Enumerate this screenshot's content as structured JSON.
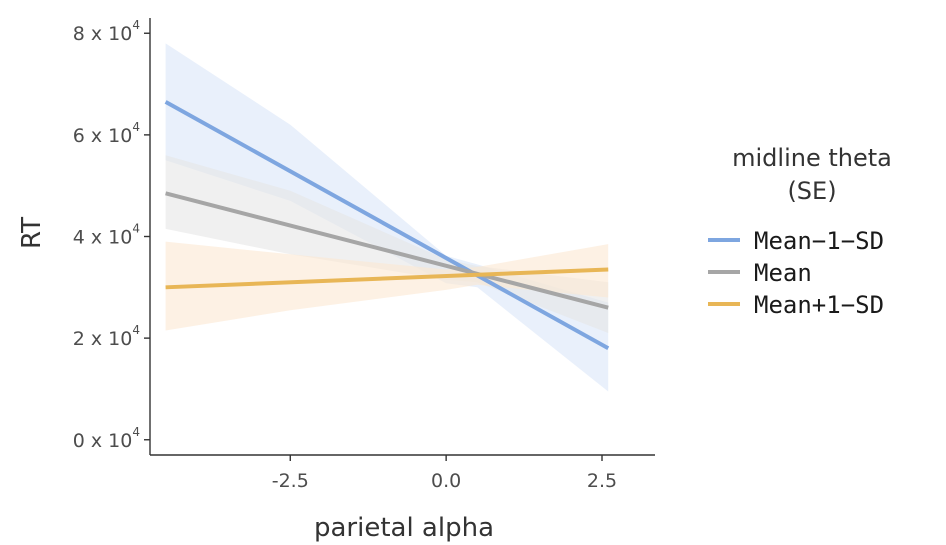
{
  "chart_data": {
    "type": "line",
    "title": "",
    "xlabel": "parietal alpha",
    "ylabel": "RT",
    "xlim": [
      -4.75,
      3.35
    ],
    "ylim": [
      -3000,
      83000
    ],
    "x_ticks": [
      -2.5,
      0.0,
      2.5
    ],
    "x_tick_labels": [
      "-2.5",
      "0.0",
      "2.5"
    ],
    "y_ticks": [
      0,
      20000,
      40000,
      60000,
      80000
    ],
    "y_tick_labels": [
      {
        "base": "0 x 10",
        "exp": "4"
      },
      {
        "base": "2 x 10",
        "exp": "4"
      },
      {
        "base": "4 x 10",
        "exp": "4"
      },
      {
        "base": "6 x 10",
        "exp": "4"
      },
      {
        "base": "8 x 10",
        "exp": "4"
      }
    ],
    "grid": false,
    "legend": {
      "title_line1": "midline theta",
      "title_line2": "(SE)",
      "placement": "right"
    },
    "series": [
      {
        "name": "Mean−1−SD",
        "color": "#7ea6e0",
        "ribbon_color": "#dbe6f8",
        "x": [
          -4.5,
          2.6
        ],
        "y": [
          66500,
          18000
        ],
        "ribbon_x": [
          -4.5,
          -2.5,
          0.0,
          0.5,
          2.6
        ],
        "ribbon_upper": [
          78000,
          62000,
          36200,
          34500,
          27000
        ],
        "ribbon_lower": [
          55000,
          47000,
          30800,
          30000,
          9500
        ]
      },
      {
        "name": "Mean",
        "color": "#a6a6a6",
        "ribbon_color": "#e6e6e6",
        "x": [
          -4.5,
          2.6
        ],
        "y": [
          48500,
          26000
        ],
        "ribbon_x": [
          -4.5,
          -2.5,
          0.0,
          0.5,
          2.6
        ],
        "ribbon_upper": [
          56000,
          49000,
          35500,
          34200,
          31000
        ],
        "ribbon_lower": [
          41500,
          36500,
          31500,
          31000,
          21000
        ]
      },
      {
        "name": "Mean+1−SD",
        "color": "#e8b656",
        "ribbon_color": "#fbe8d2",
        "x": [
          -4.5,
          2.6
        ],
        "y": [
          30000,
          33500
        ],
        "ribbon_x": [
          -4.5,
          -2.5,
          0.0,
          0.5,
          2.6
        ],
        "ribbon_upper": [
          39000,
          36500,
          33500,
          34000,
          38500
        ],
        "ribbon_lower": [
          21500,
          25500,
          29500,
          30500,
          28000
        ]
      }
    ]
  }
}
